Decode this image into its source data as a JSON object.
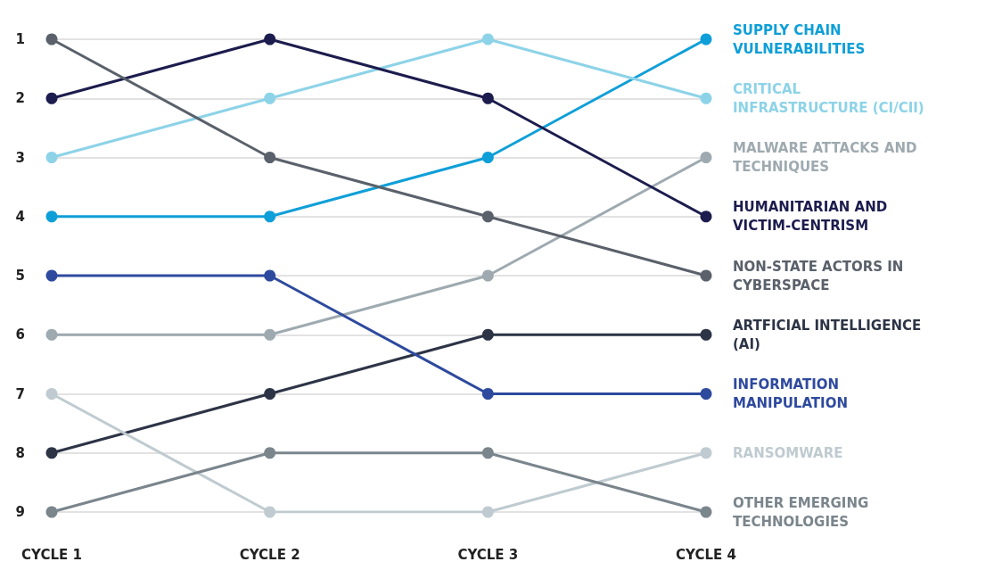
{
  "chart_data": {
    "type": "line",
    "categories": [
      "CYCLE 1",
      "CYCLE 2",
      "CYCLE 3",
      "CYCLE 4"
    ],
    "series": [
      {
        "name": "SUPPLY CHAIN VULNERABILITIES",
        "color": "#0f9fd8",
        "values": [
          4,
          4,
          3,
          1
        ]
      },
      {
        "name": "CRITICAL INFRASTRUCTURE (CI/CII)",
        "color": "#8dd3e8",
        "values": [
          3,
          2,
          1,
          2
        ]
      },
      {
        "name": "MALWARE ATTACKS AND TECHNIQUES",
        "color": "#9eaab0",
        "values": [
          6,
          6,
          5,
          3
        ]
      },
      {
        "name": "HUMANITARIAN AND VICTIM-CENTRISM",
        "color": "#1c1c4e",
        "values": [
          2,
          1,
          2,
          4
        ]
      },
      {
        "name": "NON-STATE ACTORS IN CYBERSPACE",
        "color": "#5a616b",
        "values": [
          1,
          3,
          4,
          5
        ]
      },
      {
        "name": "ARTFICIAL INTELLIGENCE (AI)",
        "color": "#2d3446",
        "values": [
          8,
          7,
          6,
          6
        ]
      },
      {
        "name": "INFORMATION MANIPULATION",
        "color": "#2e4a9e",
        "values": [
          5,
          5,
          7,
          7
        ]
      },
      {
        "name": "RANSOMWARE",
        "color": "#bfcbd0",
        "values": [
          7,
          9,
          9,
          8
        ]
      },
      {
        "name": "OTHER EMERGING TECHNOLOGIES",
        "color": "#7a858c",
        "values": [
          9,
          8,
          8,
          9
        ]
      }
    ],
    "ylim": [
      9,
      1
    ],
    "yticks": [
      1,
      2,
      3,
      4,
      5,
      6,
      7,
      8,
      9
    ],
    "grid": "y",
    "marker": "circle",
    "line_style": "solid"
  }
}
